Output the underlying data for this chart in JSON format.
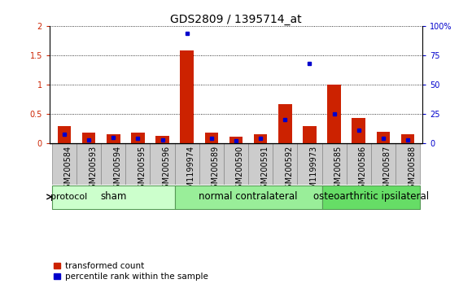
{
  "title": "GDS2809 / 1395714_at",
  "samples": [
    "GSM200584",
    "GSM200593",
    "GSM200594",
    "GSM200595",
    "GSM200596",
    "GSM1199974",
    "GSM200589",
    "GSM200590",
    "GSM200591",
    "GSM200592",
    "GSM1199973",
    "GSM200585",
    "GSM200586",
    "GSM200587",
    "GSM200588"
  ],
  "red_values": [
    0.3,
    0.18,
    0.15,
    0.18,
    0.13,
    1.58,
    0.18,
    0.12,
    0.16,
    0.67,
    0.3,
    1.0,
    0.43,
    0.19,
    0.16
  ],
  "blue_percentiles": [
    8,
    3,
    5,
    4,
    3,
    94,
    4,
    2,
    4,
    20,
    68,
    25,
    11,
    4,
    3
  ],
  "groups": [
    {
      "label": "sham",
      "start": 0,
      "end": 5,
      "color": "#ccffcc"
    },
    {
      "label": "normal contralateral",
      "start": 5,
      "end": 11,
      "color": "#99ee99"
    },
    {
      "label": "osteoarthritic ipsilateral",
      "start": 11,
      "end": 15,
      "color": "#66dd66"
    }
  ],
  "ylim_left": [
    0,
    2
  ],
  "ylim_right": [
    0,
    100
  ],
  "yticks_left": [
    0,
    0.5,
    1.0,
    1.5,
    2.0
  ],
  "ytick_labels_left": [
    "0",
    "0.5",
    "1",
    "1.5",
    "2"
  ],
  "yticks_right": [
    0,
    25,
    50,
    75,
    100
  ],
  "ytick_labels_right": [
    "0",
    "25",
    "50",
    "75",
    "100%"
  ],
  "bar_color_red": "#cc2200",
  "bar_color_blue": "#0000cc",
  "bar_width": 0.55,
  "plot_bg": "#ffffff",
  "tick_label_bg": "#cccccc",
  "legend_red": "transformed count",
  "legend_blue": "percentile rank within the sample",
  "protocol_label": "protocol",
  "title_fontsize": 10,
  "tick_fontsize": 7,
  "group_label_fontsize": 8.5
}
